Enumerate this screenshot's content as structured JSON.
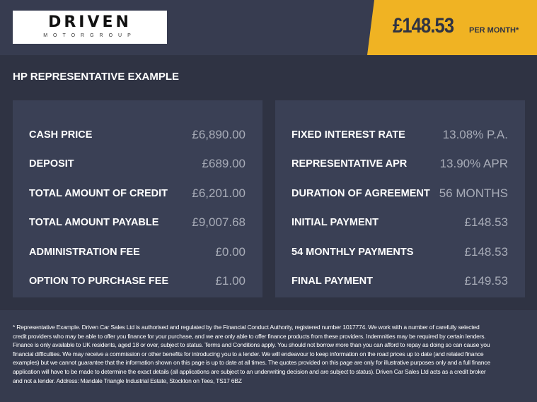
{
  "header": {
    "logo": {
      "brand": "DRIVEN",
      "sub": "MOTORGROUP"
    },
    "price": "£148.53",
    "per_month": "PER MONTH*"
  },
  "colors": {
    "accent": "#f0b323",
    "background": "#2f3343",
    "panel": "#3a4055"
  },
  "title": "HP REPRESENTATIVE EXAMPLE",
  "left_panel": [
    {
      "label": "CASH PRICE",
      "value": "£6,890.00"
    },
    {
      "label": "DEPOSIT",
      "value": "£689.00"
    },
    {
      "label": "TOTAL AMOUNT OF CREDIT",
      "value": "£6,201.00"
    },
    {
      "label": "TOTAL AMOUNT PAYABLE",
      "value": "£9,007.68"
    },
    {
      "label": "ADMINISTRATION FEE",
      "value": "£0.00"
    },
    {
      "label": "OPTION TO PURCHASE FEE",
      "value": "£1.00"
    }
  ],
  "right_panel": [
    {
      "label": "FIXED INTEREST RATE",
      "value": "13.08% P.A."
    },
    {
      "label": "REPRESENTATIVE APR",
      "value": "13.90% APR"
    },
    {
      "label": "DURATION OF AGREEMENT",
      "value": "56 MONTHS"
    },
    {
      "label": "INITIAL PAYMENT",
      "value": "£148.53"
    },
    {
      "label": "54 MONTHLY PAYMENTS",
      "value": "£148.53"
    },
    {
      "label": "FINAL PAYMENT",
      "value": "£149.53"
    }
  ],
  "footer": "* Representative Example. Driven Car Sales Ltd is authorised and regulated by the Financial Conduct Authority, registered number 1017774. We work with a number of carefully selected credit providers who may be able to offer you finance for your purchase, and we are only able to offer finance products from these providers. Indemnities may be required by certain lenders. Finance is only available to UK residents, aged 18 or over, subject to status. Terms and Conditions apply. You should not borrow more than you can afford to repay as doing so can cause you financial difficulties. We may receive a commission or other benefits for introducing you to a lender. We will endeavour to keep information on the road prices up to date (and related finance examples) but we cannot guarantee that the information shown on this page is up to date at all times. The quotes provided on this page are only for illustrative purposes only and a full finance application will have to be made to determine the exact details (all applications are subject to an underwriting decision and are subject to status). Driven Car Sales Ltd acts as a credit broker and not a lender. Address: Mandale Triangle Industrial Estate, Stockton on Tees, TS17 6BZ"
}
